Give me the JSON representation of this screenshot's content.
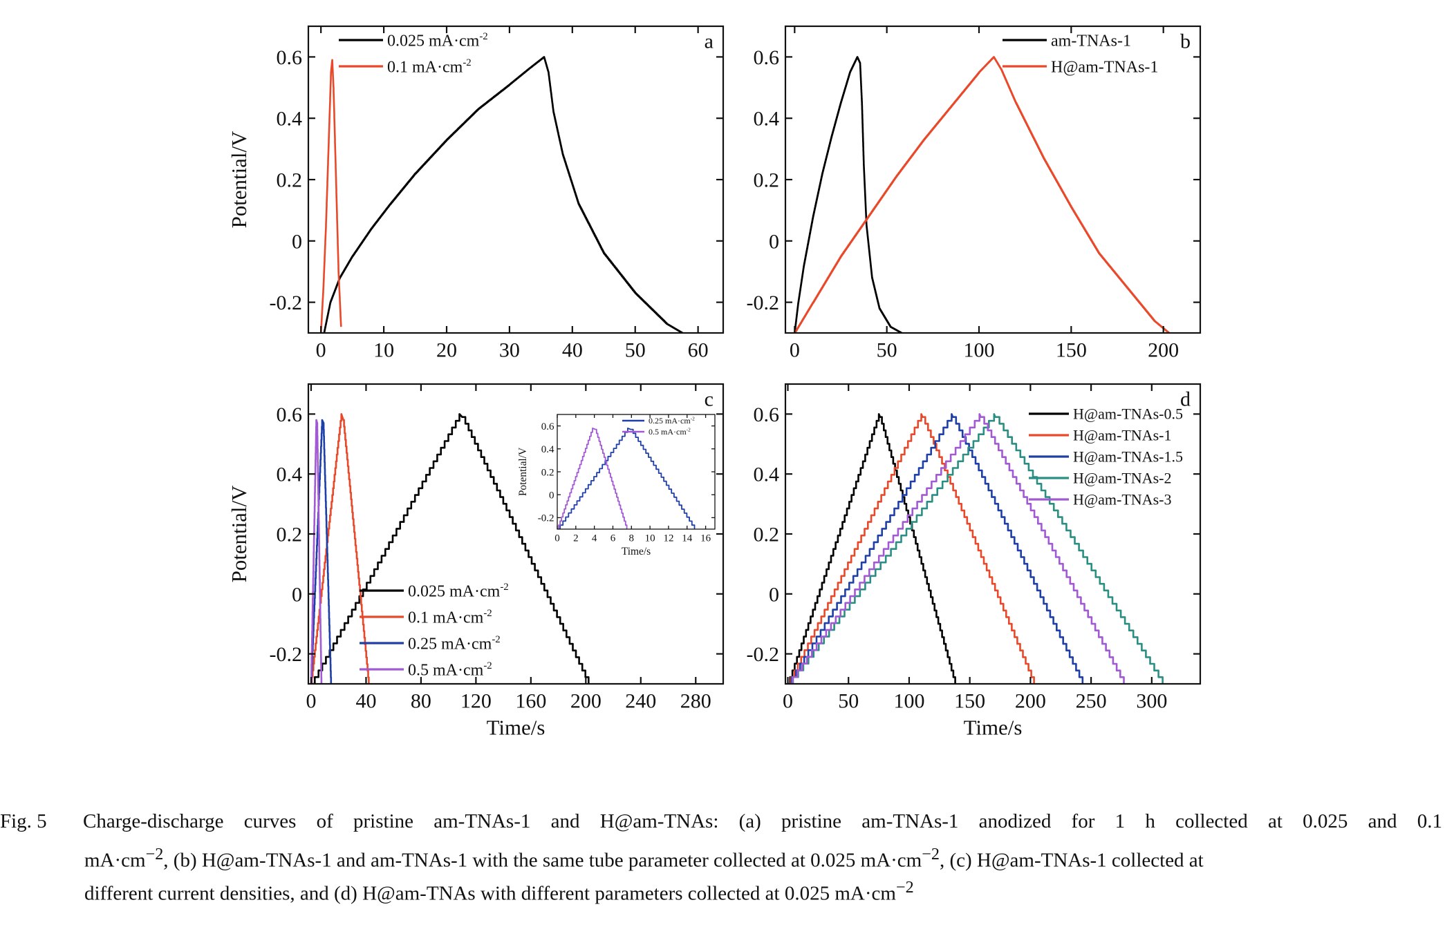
{
  "panels": [
    {
      "id": "a",
      "letter": "a",
      "chart_data": {
        "type": "line",
        "xlabel": "",
        "ylabel": "Potential/V",
        "xlim": [
          -2,
          64
        ],
        "ylim": [
          -0.3,
          0.7
        ],
        "xticks": [
          0,
          10,
          20,
          30,
          40,
          50,
          60
        ],
        "yticks": [
          -0.2,
          0.0,
          0.2,
          0.4,
          0.6
        ],
        "legend": "top-left",
        "series": [
          {
            "name": "0.025 mA·cm",
            "sup": "-2",
            "color": "#000000",
            "x": [
              0.5,
              1.5,
              3,
              5,
              8,
              11,
              15,
              20,
              25,
              30,
              33,
              35.5,
              36.2,
              37,
              38.5,
              41,
              45,
              50,
              55,
              57.5
            ],
            "y": [
              -0.3,
              -0.2,
              -0.12,
              -0.05,
              0.04,
              0.12,
              0.22,
              0.33,
              0.43,
              0.51,
              0.56,
              0.6,
              0.55,
              0.42,
              0.28,
              0.12,
              -0.04,
              -0.17,
              -0.27,
              -0.3
            ]
          },
          {
            "name": "0.1  mA·cm",
            "sup": "-2",
            "color": "#e8492a",
            "x": [
              0,
              0.4,
              0.8,
              1.2,
              1.6,
              1.8,
              2.0,
              2.4,
              2.8,
              3.2
            ],
            "y": [
              -0.3,
              -0.15,
              0.05,
              0.3,
              0.55,
              0.59,
              0.5,
              0.2,
              -0.1,
              -0.28
            ]
          }
        ]
      }
    },
    {
      "id": "b",
      "letter": "b",
      "chart_data": {
        "type": "line",
        "xlabel": "",
        "ylabel": "",
        "xlim": [
          -5,
          220
        ],
        "ylim": [
          -0.3,
          0.7
        ],
        "xticks": [
          0,
          50,
          100,
          150,
          200
        ],
        "yticks": [
          -0.2,
          0.0,
          0.2,
          0.4,
          0.6
        ],
        "legend": "top-right",
        "series": [
          {
            "name": "am-TNAs-1",
            "sup": "",
            "color": "#000000",
            "x": [
              0,
              2,
              5,
              10,
              15,
              20,
              25,
              30,
              34,
              35.5,
              36.5,
              37.5,
              39,
              42,
              46,
              52,
              58
            ],
            "y": [
              -0.3,
              -0.2,
              -0.08,
              0.08,
              0.22,
              0.34,
              0.45,
              0.55,
              0.6,
              0.58,
              0.45,
              0.25,
              0.05,
              -0.12,
              -0.22,
              -0.28,
              -0.3
            ]
          },
          {
            "name": "H@am-TNAs-1",
            "sup": "",
            "color": "#e8492a",
            "x": [
              0,
              10,
              25,
              40,
              55,
              70,
              85,
              100,
              108,
              112,
              120,
              135,
              150,
              165,
              180,
              195,
              203
            ],
            "y": [
              -0.3,
              -0.2,
              -0.05,
              0.08,
              0.21,
              0.33,
              0.44,
              0.55,
              0.6,
              0.56,
              0.45,
              0.27,
              0.11,
              -0.04,
              -0.15,
              -0.26,
              -0.3
            ]
          }
        ]
      }
    },
    {
      "id": "c",
      "letter": "c",
      "chart_data": {
        "type": "line",
        "xlabel": "Time/s",
        "ylabel": "Potential/V",
        "xlim": [
          -2,
          300
        ],
        "ylim": [
          -0.3,
          0.7
        ],
        "xticks": [
          0,
          40,
          80,
          120,
          160,
          200,
          240,
          280
        ],
        "yticks": [
          -0.2,
          0.0,
          0.2,
          0.4,
          0.6
        ],
        "legend": "bottom-center",
        "series": [
          {
            "name": "0.025 mA·cm",
            "sup": "-2",
            "color": "#000000",
            "x": [
              0,
              108,
              110,
              202
            ],
            "y": [
              -0.3,
              0.6,
              0.59,
              -0.3
            ]
          },
          {
            "name": "0.1 mA·cm",
            "sup": "-2",
            "color": "#e8492a",
            "x": [
              0,
              22,
              23.5,
              42
            ],
            "y": [
              -0.3,
              0.6,
              0.58,
              -0.3
            ]
          },
          {
            "name": "0.25 mA·cm",
            "sup": "-2",
            "color": "#1f3fa8",
            "x": [
              0,
              8,
              9,
              14.5
            ],
            "y": [
              -0.3,
              0.58,
              0.57,
              -0.3
            ]
          },
          {
            "name": "0.5 mA·cm",
            "sup": "-2",
            "color": "#a259d4",
            "x": [
              0,
              3.8,
              4.4,
              7.5
            ],
            "y": [
              -0.3,
              0.58,
              0.57,
              -0.3
            ]
          }
        ]
      },
      "inset": {
        "chart_data": {
          "type": "line",
          "xlabel": "Time/s",
          "ylabel": "Potential/V",
          "xlim": [
            0,
            17
          ],
          "ylim": [
            -0.3,
            0.7
          ],
          "xticks": [
            0,
            2,
            4,
            6,
            8,
            10,
            12,
            14,
            16
          ],
          "yticks": [
            -0.2,
            0.0,
            0.2,
            0.4,
            0.6
          ],
          "legend": "top-right",
          "series": [
            {
              "name": "0.25 mA·cm",
              "sup": "-2",
              "color": "#1f3fa8",
              "x": [
                0,
                7.6,
                7.9,
                14.8
              ],
              "y": [
                -0.3,
                0.58,
                0.57,
                -0.3
              ]
            },
            {
              "name": "0.5 mA·cm",
              "sup": "-2",
              "color": "#a259d4",
              "x": [
                0,
                3.8,
                4.1,
                7.5
              ],
              "y": [
                -0.3,
                0.58,
                0.57,
                -0.3
              ]
            }
          ]
        }
      }
    },
    {
      "id": "d",
      "letter": "d",
      "chart_data": {
        "type": "line",
        "xlabel": "Time/s",
        "ylabel": "",
        "xlim": [
          -2,
          340
        ],
        "ylim": [
          -0.3,
          0.7
        ],
        "xticks": [
          0,
          50,
          100,
          150,
          200,
          250,
          300
        ],
        "yticks": [
          -0.2,
          0.0,
          0.2,
          0.4,
          0.6
        ],
        "legend": "top-right",
        "series": [
          {
            "name": "H@am-TNAs-0.5",
            "sup": "",
            "color": "#000000",
            "x": [
              0,
              75,
              76,
              138
            ],
            "y": [
              -0.3,
              0.6,
              0.59,
              -0.3
            ]
          },
          {
            "name": "H@am-TNAs-1",
            "sup": "",
            "color": "#e8492a",
            "x": [
              0,
              110,
              111,
              203
            ],
            "y": [
              -0.3,
              0.6,
              0.59,
              -0.3
            ]
          },
          {
            "name": "H@am-TNAs-1.5",
            "sup": "",
            "color": "#1f3fa8",
            "x": [
              0,
              135,
              136,
              243
            ],
            "y": [
              -0.3,
              0.6,
              0.59,
              -0.3
            ]
          },
          {
            "name": "H@am-TNAs-2",
            "sup": "",
            "color": "#2a8f82",
            "x": [
              0,
              170,
              171,
              309
            ],
            "y": [
              -0.3,
              0.6,
              0.59,
              -0.3
            ]
          },
          {
            "name": "H@am-TNAs-3",
            "sup": "",
            "color": "#a259d4",
            "x": [
              0,
              158,
              159,
              277
            ],
            "y": [
              -0.3,
              0.6,
              0.59,
              -0.3
            ]
          }
        ]
      }
    }
  ],
  "caption": {
    "label": "Fig. 5",
    "line1": "Charge-discharge curves of pristine am-TNAs-1 and H@am-TNAs: (a) pristine am-TNAs-1 anodized for 1 h collected at 0.025 and 0.1",
    "line2_a": "mA·cm",
    "line2_sup1": "−2",
    "line2_b": ", (b) H@am-TNAs-1 and am-TNAs-1 with the same tube parameter collected at 0.025 mA·cm",
    "line2_sup2": "−2",
    "line2_c": ", (c) H@am-TNAs-1 collected at",
    "line3_a": "different current densities, and (d) H@am-TNAs with different parameters collected at 0.025 mA·cm",
    "line3_sup": "−2"
  }
}
